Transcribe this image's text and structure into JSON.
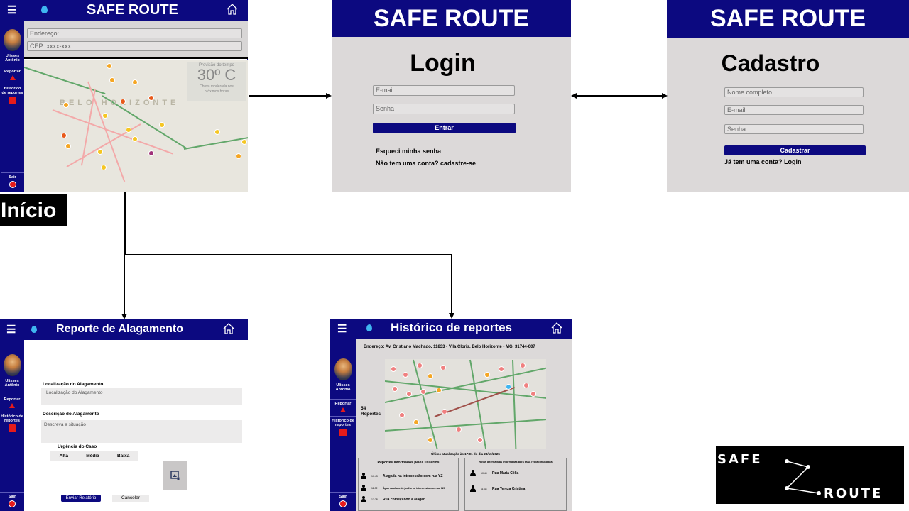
{
  "app_name": "SAFE ROUTE",
  "user_name": "Ulisses Antônio",
  "sidebar": {
    "report": "Reportar",
    "history": "Histórico de reportes",
    "exit": "Sair"
  },
  "inicio": {
    "label": "Início",
    "address_placeholder": "Endereço:",
    "cep_placeholder": "CEP: xxxx-xxx",
    "weather_title": "Previsão do tempo",
    "weather_temp": "30º C",
    "weather_desc": "Chuva moderada nos próximos horas",
    "map_label": "BELO HORIZONTE"
  },
  "login": {
    "title": "Login",
    "email": "E-mail",
    "password": "Senha",
    "submit": "Entrar",
    "forgot": "Esqueci minha senha",
    "signup": "Não tem uma conta? cadastre-se"
  },
  "cadastro": {
    "title": "Cadastro",
    "name": "Nome completo",
    "email": "E-mail",
    "password": "Senha",
    "submit": "Cadastrar",
    "login": "Já tem uma conta? Login"
  },
  "reporte": {
    "title": "Reporte de Alagamento",
    "location_label": "Localização do Alagamento",
    "location_placeholder": "Localização do Alagamento",
    "description_label": "Descrição do Alagamento",
    "description_placeholder": "Descreva a situação",
    "urgency_label": "Urgência do Caso",
    "urgency_options": [
      "Alta",
      "Média",
      "Baixa"
    ],
    "send": "Enviar Relatório",
    "cancel": "Cancelar"
  },
  "historico": {
    "title": "Histórico de reportes",
    "address": "Endereço: Av. Cristiano Machado, 11833 - Vila Cloris, Belo Horizonte - MG, 31744-007",
    "count": "54",
    "count_label": "Reportes",
    "updated": "Último atualização às 17:01 do dia 23/10/2025",
    "users_title": "Reportes informados pelos usuários",
    "routes_title": "Rotas alternativas informadas para essa região inundada",
    "user_reports": [
      {
        "time": "10:43",
        "text": "Alagada na intercessão com rua YZ"
      },
      {
        "time": "11:02",
        "text": "Água na altura do joelho na intercessão com rua 123"
      },
      {
        "time": "13:28",
        "text": "Rua começando a alagar"
      }
    ],
    "routes": [
      {
        "time": "10:40",
        "text": "Rua Maria Célia"
      },
      {
        "time": "11:33",
        "text": "Rua Tereza Cristina"
      }
    ]
  },
  "logo": {
    "word1": "SAFE",
    "word2": "ROUTE"
  }
}
